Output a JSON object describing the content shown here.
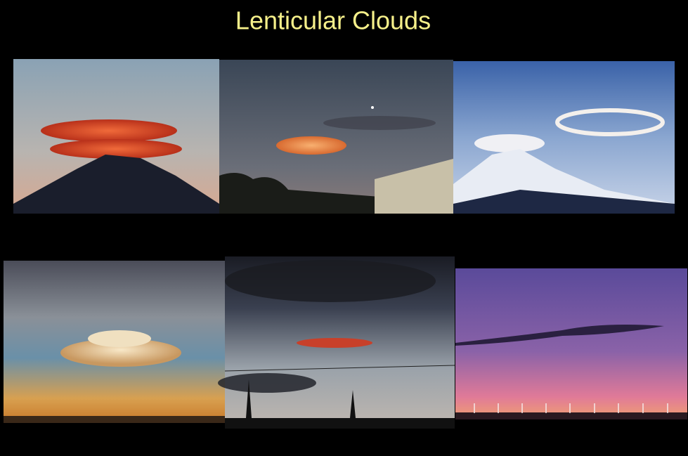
{
  "title": "Lenticular Clouds"
}
